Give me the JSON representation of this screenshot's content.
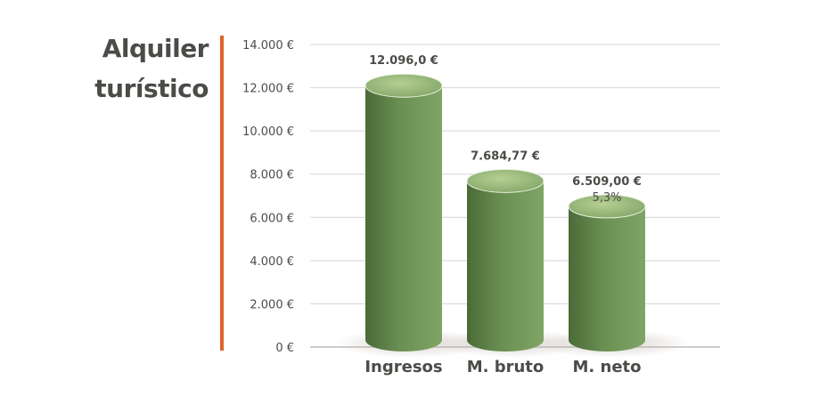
{
  "title_lines": [
    "Alquiler",
    "turístico"
  ],
  "colors": {
    "accent": "#e0622a",
    "bar": "#6a8f52",
    "grid": "#d4d4d4",
    "text": "#4d4b48"
  },
  "chart_data": {
    "type": "bar",
    "title": "Alquiler turístico",
    "xlabel": "",
    "ylabel": "",
    "ylim": [
      0,
      14000
    ],
    "yticks": [
      0,
      2000,
      4000,
      6000,
      8000,
      10000,
      12000,
      14000
    ],
    "ytick_labels": [
      "0 €",
      "2.000 €",
      "4.000 €",
      "6.000 €",
      "8.000 €",
      "10.000 €",
      "12.000 €",
      "14.000 €"
    ],
    "categories": [
      "Ingresos",
      "M. bruto",
      "M. neto"
    ],
    "values": [
      12096.0,
      7684.77,
      6509.0
    ],
    "value_labels": [
      "12.096,0 €",
      "7.684,77 €",
      "6.509,00 €"
    ],
    "sub_labels": [
      "",
      "",
      "5,3%"
    ],
    "grid": true,
    "legend": "none"
  }
}
